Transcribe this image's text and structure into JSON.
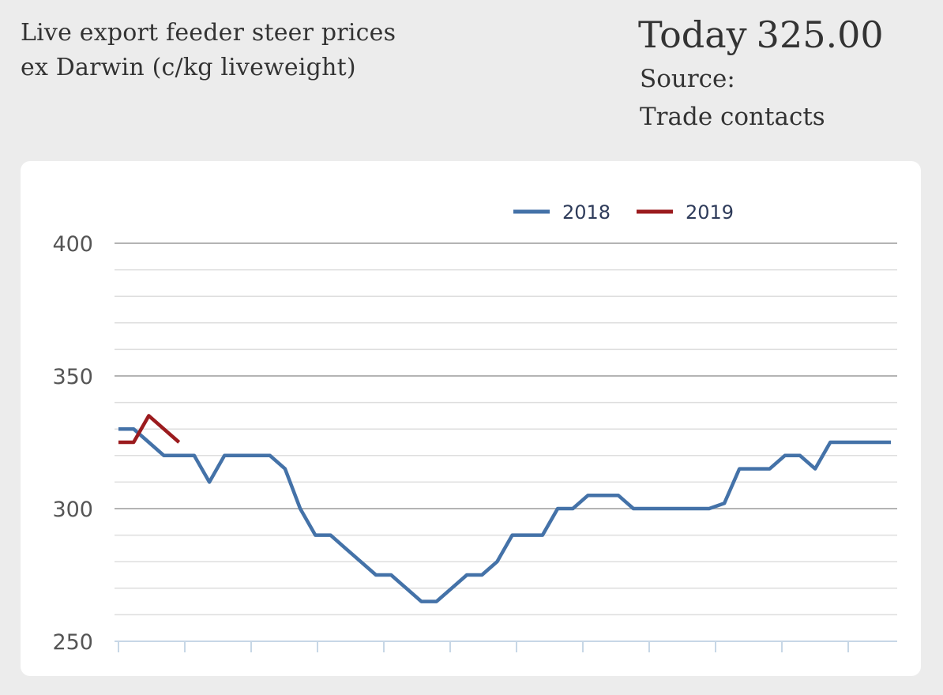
{
  "header": {
    "title_line1": "Live export feeder steer prices",
    "title_line2": "ex Darwin (c/kg liveweight)",
    "today_label": "Today",
    "today_value": "325.00",
    "source_label": "Source:",
    "source_value": "Trade contacts"
  },
  "chart_data": {
    "type": "line",
    "ylim": [
      250,
      400
    ],
    "yticks": [
      "400",
      "350",
      "300",
      "250"
    ],
    "x_points": 52,
    "grid": true,
    "legend_position": "top-center",
    "series": [
      {
        "name": "2018",
        "color": "#4472a8",
        "values": [
          330,
          330,
          325,
          320,
          320,
          320,
          310,
          320,
          320,
          320,
          320,
          315,
          300,
          290,
          290,
          285,
          280,
          275,
          275,
          270,
          265,
          265,
          270,
          275,
          275,
          280,
          290,
          290,
          290,
          300,
          300,
          305,
          305,
          305,
          300,
          300,
          300,
          300,
          300,
          300,
          302,
          315,
          315,
          315,
          320,
          320,
          315,
          325,
          325,
          325,
          325,
          325
        ]
      },
      {
        "name": "2019",
        "color": "#9b1b1e",
        "values": [
          325,
          325,
          335,
          330,
          325
        ]
      }
    ]
  }
}
